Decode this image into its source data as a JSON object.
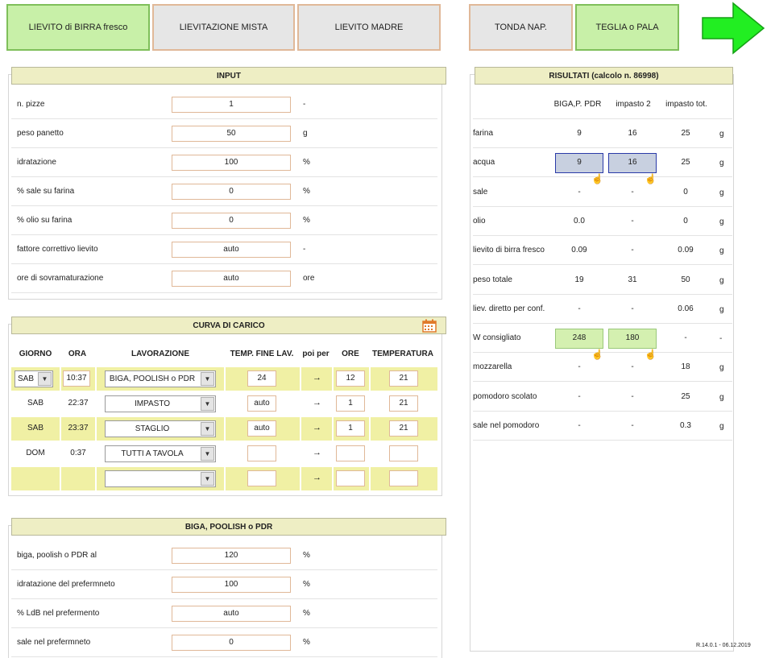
{
  "nav": {
    "tabs": [
      {
        "label": "LIEVITO di BIRRA fresco",
        "active": true
      },
      {
        "label": "LIEVITAZIONE MISTA",
        "active": false
      },
      {
        "label": "LIEVITO MADRE",
        "active": false
      },
      {
        "label": "TONDA NAP.",
        "active": false
      },
      {
        "label": "TEGLIA o PALA",
        "active": true
      }
    ],
    "next_icon": "green-right-arrow-icon"
  },
  "input": {
    "title": "INPUT",
    "rows": [
      {
        "label": "n. pizze",
        "value": "1",
        "unit": "-"
      },
      {
        "label": "peso panetto",
        "value": "50",
        "unit": "g"
      },
      {
        "label": "idratazione",
        "value": "100",
        "unit": "%"
      },
      {
        "label": "% sale su farina",
        "value": "0",
        "unit": "%"
      },
      {
        "label": "% olio su farina",
        "value": "0",
        "unit": "%"
      },
      {
        "label": "fattore correttivo lievito",
        "value": "auto",
        "unit": "-"
      },
      {
        "label": "ore di sovramaturazione",
        "value": "auto",
        "unit": "ore"
      }
    ]
  },
  "curva": {
    "title": "CURVA DI CARICO",
    "calendar_icon": "calendar-icon",
    "headers": [
      "GIORNO",
      "ORA",
      "LAVORAZIONE",
      "TEMP. FINE LAV.",
      "poi per",
      "ORE",
      "TEMPERATURA"
    ],
    "rows": [
      {
        "giorno": "SAB",
        "ora": "10:37",
        "lavorazione": "BIGA, POOLISH o PDR",
        "temp": "24",
        "arrow": "→",
        "ore": "12",
        "temperatura": "21"
      },
      {
        "giorno": "SAB",
        "ora": "22:37",
        "lavorazione": "IMPASTO",
        "temp": "auto",
        "arrow": "→",
        "ore": "1",
        "temperatura": "21"
      },
      {
        "giorno": "SAB",
        "ora": "23:37",
        "lavorazione": "STAGLIO",
        "temp": "auto",
        "arrow": "→",
        "ore": "1",
        "temperatura": "21"
      },
      {
        "giorno": "DOM",
        "ora": "0:37",
        "lavorazione": "TUTTI A TAVOLA",
        "temp": "",
        "arrow": "→",
        "ore": "",
        "temperatura": ""
      },
      {
        "giorno": "",
        "ora": "",
        "lavorazione": "",
        "temp": "",
        "arrow": "→",
        "ore": "",
        "temperatura": ""
      }
    ]
  },
  "biga": {
    "title": "BIGA, POOLISH o PDR",
    "rows": [
      {
        "label": "biga, poolish o PDR al",
        "value": "120",
        "unit": "%"
      },
      {
        "label": "idratazione del prefermneto",
        "value": "100",
        "unit": "%"
      },
      {
        "label": "% LdB nel prefermento",
        "value": "auto",
        "unit": "%"
      },
      {
        "label": "sale nel prefermneto",
        "value": "0",
        "unit": "%"
      }
    ]
  },
  "results": {
    "title": "RISULTATI (calcolo n. 86998)",
    "col_headers": [
      "BIGA,P. PDR",
      "impasto 2",
      "impasto tot."
    ],
    "rows": [
      {
        "label": "farina",
        "c1": "9",
        "c2": "16",
        "c3": "25",
        "unit": "g"
      },
      {
        "label": "acqua",
        "c1": "9",
        "c2": "16",
        "c3": "25",
        "unit": "g"
      },
      {
        "label": "sale",
        "c1": "-",
        "c2": "-",
        "c3": "0",
        "unit": "g"
      },
      {
        "label": "olio",
        "c1": "0.0",
        "c2": "-",
        "c3": "0",
        "unit": "g"
      },
      {
        "label": "lievito di birra fresco",
        "c1": "0.09",
        "c2": "-",
        "c3": "0.09",
        "unit": "g"
      },
      {
        "label": "peso totale",
        "c1": "19",
        "c2": "31",
        "c3": "50",
        "unit": "g"
      },
      {
        "label": "liev. diretto per conf.",
        "c1": "-",
        "c2": "-",
        "c3": "0.06",
        "unit": "g"
      },
      {
        "label": "W consigliato",
        "c1": "248",
        "c2": "180",
        "c3": "-",
        "unit": "-"
      },
      {
        "label": "mozzarella",
        "c1": "-",
        "c2": "-",
        "c3": "18",
        "unit": "g"
      },
      {
        "label": "pomodoro scolato",
        "c1": "-",
        "c2": "-",
        "c3": "25",
        "unit": "g"
      },
      {
        "label": "sale nel pomodoro",
        "c1": "-",
        "c2": "-",
        "c3": "0.3",
        "unit": "g"
      }
    ],
    "version": "R.14.0.1 - 06.12.2019",
    "colors": {
      "blue_box": "#c8d0e0",
      "green_box": "#d4f0b0"
    }
  }
}
